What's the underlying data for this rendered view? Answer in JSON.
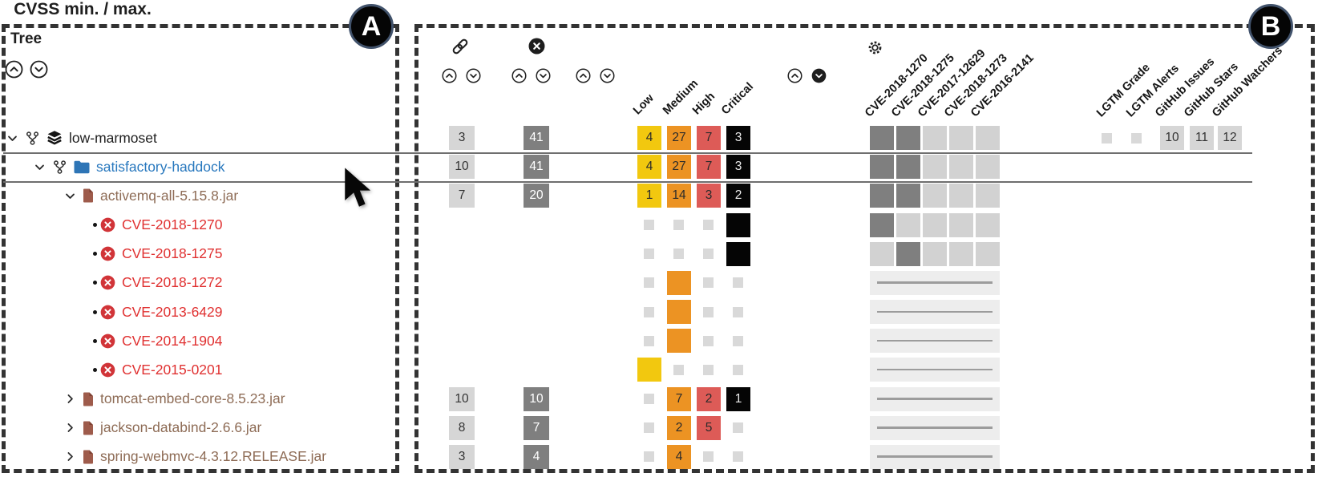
{
  "annotations": {
    "panel_a": "A",
    "panel_b": "B"
  },
  "tree": {
    "title": "Tree",
    "items": [
      {
        "label": "low-marmoset",
        "type": "project",
        "level": 0
      },
      {
        "label": "satisfactory-haddock",
        "type": "module",
        "level": 1
      },
      {
        "label": "activemq-all-5.15.8.jar",
        "type": "jar-expanded",
        "level": 2
      },
      {
        "label": "CVE-2018-1270",
        "type": "cve",
        "level": 3
      },
      {
        "label": "CVE-2018-1275",
        "type": "cve",
        "level": 3
      },
      {
        "label": "CVE-2018-1272",
        "type": "cve",
        "level": 3
      },
      {
        "label": "CVE-2013-6429",
        "type": "cve",
        "level": 3
      },
      {
        "label": "CVE-2014-1904",
        "type": "cve",
        "level": 3
      },
      {
        "label": "CVE-2015-0201",
        "type": "cve",
        "level": 3
      },
      {
        "label": "tomcat-embed-core-8.5.23.jar",
        "type": "jar-collapsed",
        "level": 2
      },
      {
        "label": "jackson-databind-2.6.6.jar",
        "type": "jar-collapsed",
        "level": 2
      },
      {
        "label": "spring-webmvc-4.3.12.RELEASE.jar",
        "type": "jar-collapsed",
        "level": 2
      }
    ]
  },
  "grid": {
    "cvss_title": "CVSS min. / max.",
    "severity_columns": [
      "Low",
      "Medium",
      "High",
      "Critical"
    ],
    "cve_columns": [
      "CVE-2018-1270",
      "CVE-2018-1275",
      "CVE-2017-12629",
      "CVE-2018-1273",
      "CVE-2016-2141"
    ],
    "meta_columns": [
      "LGTM Grade",
      "LGTM Alerts",
      "GitHub Issues",
      "GitHub Stars",
      "GitHub Watchers"
    ],
    "rows": [
      {
        "name": "low-marmoset",
        "links": "3",
        "errors": "41",
        "severity": [
          {
            "s": "yellow",
            "v": "4"
          },
          {
            "s": "orange",
            "v": "27"
          },
          {
            "s": "red",
            "v": "7"
          },
          {
            "s": "black",
            "v": "3"
          }
        ],
        "matrix": [
          "d",
          "d",
          "l",
          "l",
          "l"
        ],
        "meta": {
          "lgtm_grade": "empty",
          "lgtm_alerts": "empty",
          "github_issues": "10",
          "github_stars": "11",
          "github_watchers": "12"
        }
      },
      {
        "name": "satisfactory-haddock",
        "links": "10",
        "errors": "41",
        "severity": [
          {
            "s": "yellow",
            "v": "4"
          },
          {
            "s": "orange",
            "v": "27"
          },
          {
            "s": "red",
            "v": "7"
          },
          {
            "s": "black",
            "v": "3"
          }
        ],
        "matrix": [
          "d",
          "d",
          "l",
          "l",
          "l"
        ],
        "meta": null
      },
      {
        "name": "activemq-all-5.15.8.jar",
        "links": "7",
        "errors": "20",
        "severity": [
          {
            "s": "yellow",
            "v": "1"
          },
          {
            "s": "orange",
            "v": "14"
          },
          {
            "s": "red",
            "v": "3"
          },
          {
            "s": "black",
            "v": "2"
          }
        ],
        "matrix": [
          "d",
          "d",
          "l",
          "l",
          "l"
        ],
        "meta": null
      },
      {
        "name": "CVE-2018-1270",
        "links": null,
        "errors": null,
        "severity": [
          {
            "s": "small"
          },
          {
            "s": "small"
          },
          {
            "s": "small"
          },
          {
            "s": "black",
            "v": ""
          }
        ],
        "matrix": [
          "d",
          "l",
          "l",
          "l",
          "l"
        ],
        "meta": null
      },
      {
        "name": "CVE-2018-1275",
        "links": null,
        "errors": null,
        "severity": [
          {
            "s": "small"
          },
          {
            "s": "small"
          },
          {
            "s": "small"
          },
          {
            "s": "black",
            "v": ""
          }
        ],
        "matrix": [
          "l",
          "d",
          "l",
          "l",
          "l"
        ],
        "meta": null
      },
      {
        "name": "CVE-2018-1272",
        "links": null,
        "errors": null,
        "severity": [
          {
            "s": "small"
          },
          {
            "s": "orange",
            "v": ""
          },
          {
            "s": "small"
          },
          {
            "s": "small"
          }
        ],
        "matrix": "band",
        "meta": null
      },
      {
        "name": "CVE-2013-6429",
        "links": null,
        "errors": null,
        "severity": [
          {
            "s": "small"
          },
          {
            "s": "orange",
            "v": ""
          },
          {
            "s": "small"
          },
          {
            "s": "small"
          }
        ],
        "matrix": "band",
        "meta": null
      },
      {
        "name": "CVE-2014-1904",
        "links": null,
        "errors": null,
        "severity": [
          {
            "s": "small"
          },
          {
            "s": "orange",
            "v": ""
          },
          {
            "s": "small"
          },
          {
            "s": "small"
          }
        ],
        "matrix": "band",
        "meta": null
      },
      {
        "name": "CVE-2015-0201",
        "links": null,
        "errors": null,
        "severity": [
          {
            "s": "yellow",
            "v": ""
          },
          {
            "s": "small"
          },
          {
            "s": "small"
          },
          {
            "s": "small"
          }
        ],
        "matrix": "band",
        "meta": null
      },
      {
        "name": "tomcat-embed-core-8.5.23.jar",
        "links": "10",
        "errors": "10",
        "severity": [
          {
            "s": "small"
          },
          {
            "s": "orange",
            "v": "7"
          },
          {
            "s": "red",
            "v": "2"
          },
          {
            "s": "black",
            "v": "1"
          }
        ],
        "matrix": "band",
        "meta": null
      },
      {
        "name": "jackson-databind-2.6.6.jar",
        "links": "8",
        "errors": "7",
        "severity": [
          {
            "s": "small"
          },
          {
            "s": "orange",
            "v": "2"
          },
          {
            "s": "red",
            "v": "5"
          },
          {
            "s": "small"
          }
        ],
        "matrix": "band",
        "meta": null
      },
      {
        "name": "spring-webmvc-4.3.12.RELEASE.jar",
        "links": "3",
        "errors": "4",
        "severity": [
          {
            "s": "small"
          },
          {
            "s": "orange",
            "v": "4"
          },
          {
            "s": "small"
          },
          {
            "s": "small"
          }
        ],
        "matrix": "band",
        "meta": null
      }
    ]
  },
  "colors": {
    "severity_low": "#F2C80F",
    "severity_medium": "#EC9323",
    "severity_high": "#DD5B57",
    "severity_critical": "#050505",
    "count_light": "#D6D6D6",
    "count_dark": "#7F7F7F",
    "module_blue": "#2878BE",
    "jar_brown": "#8E6C56",
    "cve_red": "#E03131"
  }
}
